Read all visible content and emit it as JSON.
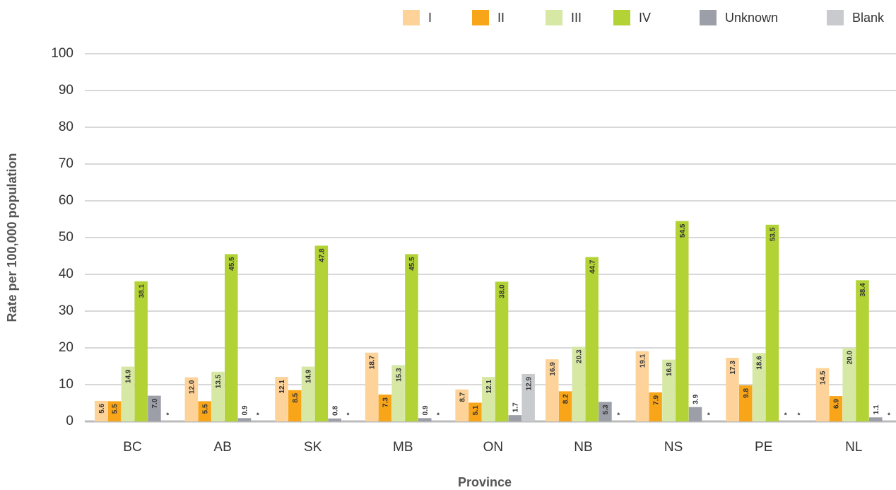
{
  "chart_data": {
    "type": "bar",
    "x_label": "Province",
    "y_label": "Rate per 100,000 population",
    "categories": [
      "BC",
      "AB",
      "SK",
      "MB",
      "ON",
      "NB",
      "NS",
      "PE",
      "NL"
    ],
    "series": [
      {
        "name": "I",
        "color": "#fdd39a",
        "values": [
          5.6,
          12.0,
          12.1,
          18.7,
          8.7,
          16.9,
          19.1,
          17.3,
          14.5
        ],
        "value_labels": [
          "5.6",
          "12.0",
          "12.1",
          "18.7",
          "8.7",
          "16.9",
          "19.1",
          "17.3",
          "14.5"
        ]
      },
      {
        "name": "II",
        "color": "#f9a51a",
        "values": [
          5.5,
          5.5,
          8.5,
          7.3,
          5.1,
          8.2,
          7.9,
          9.8,
          6.9
        ],
        "value_labels": [
          "5.5",
          "5.5",
          "8.5",
          "7.3",
          "5.1",
          "8.2",
          "7.9",
          "9.8",
          "6.9"
        ]
      },
      {
        "name": "III",
        "color": "#d6e8a4",
        "values": [
          14.9,
          13.5,
          14.9,
          15.3,
          12.1,
          20.3,
          16.8,
          18.6,
          20.0
        ],
        "value_labels": [
          "14.9",
          "13.5",
          "14.9",
          "15.3",
          "12.1",
          "20.3",
          "16.8",
          "18.6",
          "20.0"
        ]
      },
      {
        "name": "IV",
        "color": "#b2d235",
        "values": [
          38.1,
          45.5,
          47.8,
          45.5,
          38.0,
          44.7,
          54.5,
          53.5,
          38.4
        ],
        "value_labels": [
          "38.1",
          "45.5",
          "47.8",
          "45.5",
          "38.0",
          "44.7",
          "54.5",
          "53.5",
          "38.4"
        ]
      },
      {
        "name": "Unknown",
        "color": "#9c9ea8",
        "values": [
          7.0,
          0.9,
          0.8,
          0.9,
          1.7,
          5.3,
          3.9,
          null,
          1.1
        ],
        "value_labels": [
          "7.0",
          "0.9",
          "0.8",
          "0.9",
          "1.7",
          "5.3",
          "3.9",
          "*",
          "1.1"
        ]
      },
      {
        "name": "Blank",
        "color": "#c9cace",
        "values": [
          null,
          null,
          null,
          null,
          12.9,
          null,
          null,
          null,
          null
        ],
        "value_labels": [
          "*",
          "*",
          "*",
          "*",
          "12.9",
          "*",
          "*",
          "*",
          "*"
        ]
      }
    ],
    "ylim": [
      0,
      100
    ],
    "yticks": [
      0,
      10,
      20,
      30,
      40,
      50,
      60,
      70,
      80,
      90,
      100
    ],
    "grid": true,
    "legend": "top-right"
  }
}
